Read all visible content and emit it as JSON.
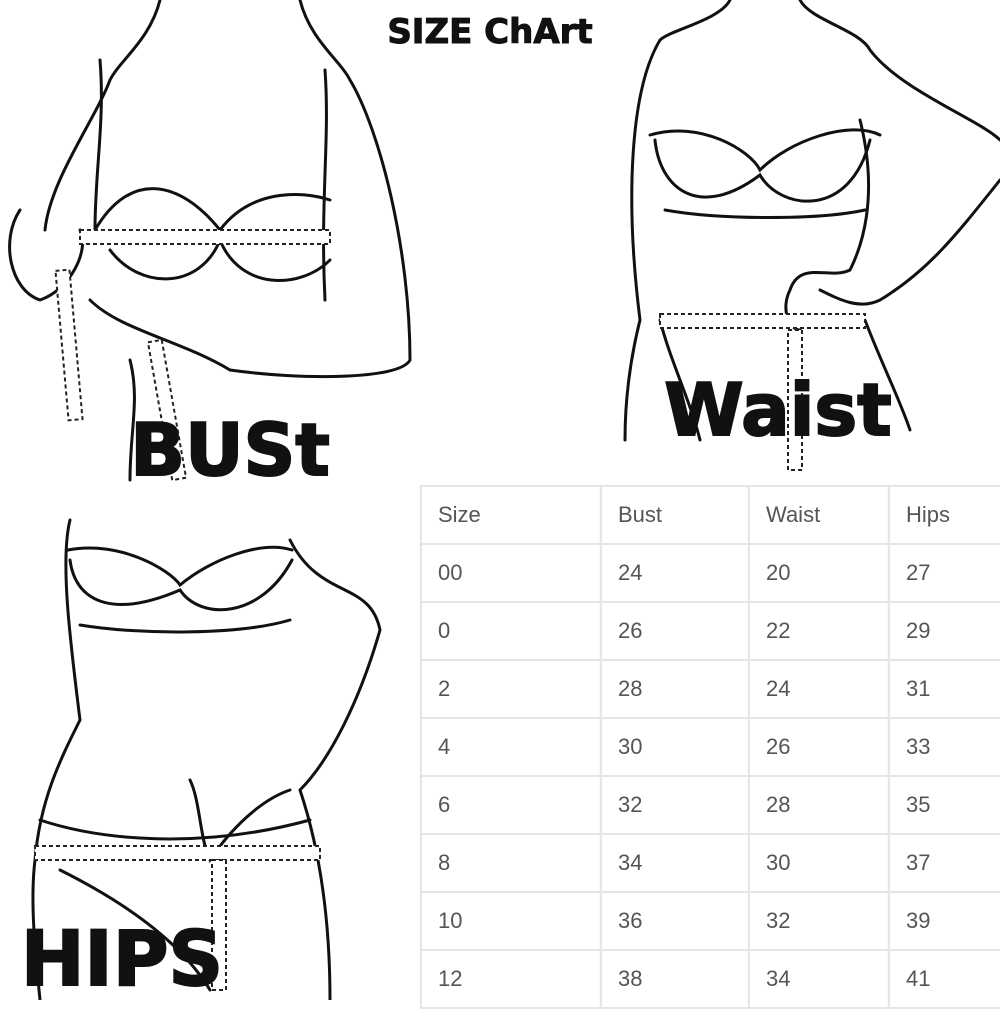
{
  "header": {
    "title": "SIZE ChArt"
  },
  "illustrations": {
    "bust": "BUSt",
    "waist": "Waist",
    "hips": "HIPS"
  },
  "table": {
    "header": [
      "Size",
      "Bust",
      "Waist",
      "Hips"
    ],
    "rows": [
      [
        "00",
        "24",
        "20",
        "27"
      ],
      [
        "0",
        "26",
        "22",
        "29"
      ],
      [
        "2",
        "28",
        "24",
        "31"
      ],
      [
        "4",
        "30",
        "26",
        "33"
      ],
      [
        "6",
        "32",
        "28",
        "35"
      ],
      [
        "8",
        "34",
        "30",
        "37"
      ],
      [
        "10",
        "36",
        "32",
        "39"
      ],
      [
        "12",
        "38",
        "34",
        "41"
      ]
    ]
  }
}
